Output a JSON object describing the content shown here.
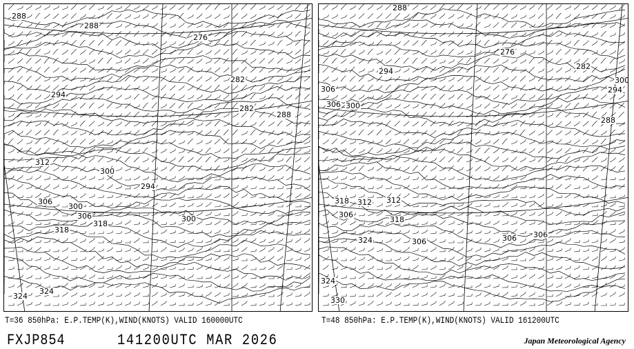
{
  "panels": [
    {
      "caption": "T=36 850hPa: E.P.TEMP(K),WIND(KNOTS) VALID 160000UTC",
      "labels": [
        "288",
        "288",
        "276",
        "294",
        "282",
        "282",
        "288",
        "312",
        "300",
        "294",
        "306",
        "300",
        "306",
        "318",
        "300",
        "318",
        "324",
        "324"
      ]
    },
    {
      "caption": "T=48 850hPa: E.P.TEMP(K),WIND(KNOTS) VALID 161200UTC",
      "labels": [
        "288",
        "276",
        "294",
        "282",
        "300",
        "294",
        "306",
        "300",
        "306",
        "288",
        "318",
        "312",
        "312",
        "306",
        "318",
        "324",
        "306",
        "306",
        "306",
        "324",
        "330"
      ]
    }
  ],
  "footer": {
    "chart_id": "FXJP854",
    "issued": "141200UTC MAR 2026",
    "agency": "Japan Meteorological Agency"
  },
  "colors": {
    "lines": "#000000",
    "background": "#ffffff"
  }
}
